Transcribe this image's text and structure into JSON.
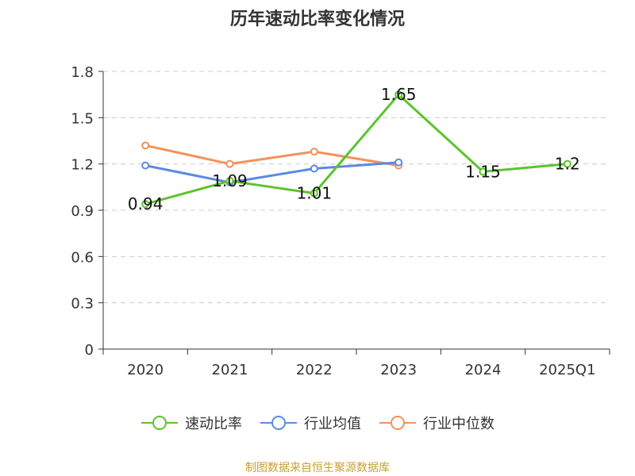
{
  "chart_data": {
    "type": "line",
    "title": "历年速动比率变化情况",
    "categories": [
      "2020",
      "2021",
      "2022",
      "2023",
      "2024",
      "2025Q1"
    ],
    "yticks": [
      "0",
      "0.3",
      "0.6",
      "0.9",
      "1.2",
      "1.5",
      "1.8"
    ],
    "ylim": [
      0,
      1.8
    ],
    "grid": true,
    "legend_position": "bottom",
    "series": [
      {
        "name": "速动比率",
        "color": "#5cc42c",
        "values": [
          0.94,
          1.09,
          1.01,
          1.65,
          1.15,
          1.2
        ],
        "labels": [
          "0.94",
          "1.09",
          "1.01",
          "1.65",
          "1.15",
          "1.2"
        ],
        "show_labels": true
      },
      {
        "name": "行业均值",
        "color": "#5b8ae0",
        "values": [
          1.19,
          1.08,
          1.17,
          1.21,
          null,
          null
        ],
        "show_labels": false
      },
      {
        "name": "行业中位数",
        "color": "#f4915a",
        "values": [
          1.32,
          1.2,
          1.28,
          1.19,
          null,
          null
        ],
        "show_labels": false
      }
    ]
  },
  "footer": {
    "source": "制图数据来自恒生聚源数据库"
  }
}
